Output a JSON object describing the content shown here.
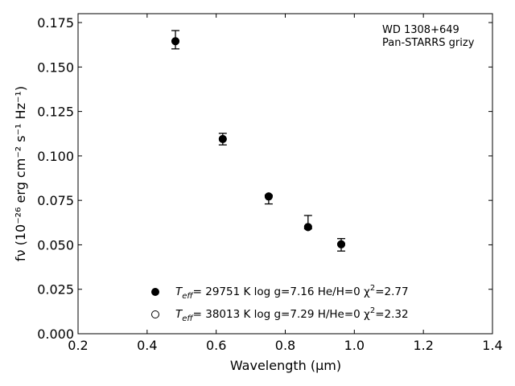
{
  "chart_data": {
    "type": "scatter",
    "title": "",
    "xlabel": "Wavelength (μm)",
    "ylabel": "fν (10⁻²⁶ erg cm⁻² s⁻¹ Hz⁻¹)",
    "xlim": [
      0.2,
      1.4
    ],
    "ylim": [
      0.0,
      0.18
    ],
    "x_ticks": [
      0.2,
      0.4,
      0.6,
      0.8,
      1.0,
      1.2,
      1.4
    ],
    "x_tick_labels": [
      "0.2",
      "0.4",
      "0.6",
      "0.8",
      "1.0",
      "1.2",
      "1.4"
    ],
    "y_ticks": [
      0.0,
      0.025,
      0.05,
      0.075,
      0.1,
      0.125,
      0.15,
      0.175
    ],
    "y_tick_labels": [
      "0.000",
      "0.025",
      "0.050",
      "0.075",
      "0.100",
      "0.125",
      "0.150",
      "0.175"
    ],
    "grid": false,
    "legend_position": "bottom-center",
    "annotation": {
      "line1": "WD 1308+649",
      "line2": "Pan-STARRS grizy"
    },
    "series": [
      {
        "marker": "filled-circle",
        "x": [
          0.482,
          0.619,
          0.752,
          0.866,
          0.962
        ],
        "y": [
          0.1645,
          0.1095,
          0.0772,
          0.06,
          0.0503
        ],
        "yerr_lower": [
          0.0043,
          0.0033,
          0.0042,
          0.001,
          0.0038
        ],
        "yerr_upper": [
          0.006,
          0.0032,
          0.0008,
          0.0065,
          0.0032
        ]
      },
      {
        "marker": "open-circle",
        "x": [
          0.482,
          0.619,
          0.752,
          0.866,
          0.962
        ],
        "y": [
          0.1645,
          0.1095,
          0.0772,
          0.06,
          0.0503
        ]
      }
    ],
    "legend_entries": [
      {
        "marker": "filled-circle",
        "teff_label": "T",
        "teff_sub": "eff",
        "teff_text": "= 29751 K  log g=7.16  He/H=0  χ",
        "chi_sup": "2",
        "chi_value": "=2.77"
      },
      {
        "marker": "open-circle",
        "teff_label": "T",
        "teff_sub": "eff",
        "teff_text": "= 38013 K  log g=7.29  H/He=0  χ",
        "chi_sup": "2",
        "chi_value": "=2.32"
      }
    ]
  },
  "colors": {
    "marker": "#000000",
    "axis": "#000000",
    "background": "#ffffff"
  }
}
